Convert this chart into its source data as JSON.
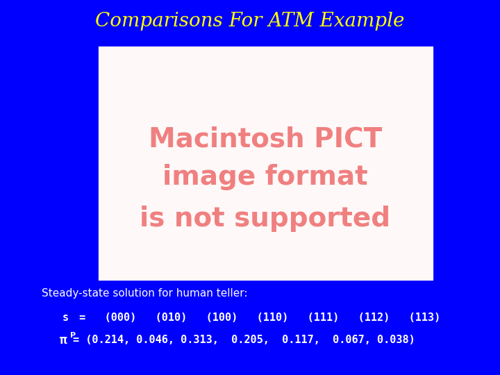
{
  "title": "Comparisons For ATM Example",
  "title_color": "#FFFF00",
  "title_fontsize": 20,
  "bg_color": "#0000FF",
  "image_placeholder_text": [
    "Macintosh PICT",
    "image format",
    "is not supported"
  ],
  "image_placeholder_text_color": "#F08080",
  "image_placeholder_bg": "#FFF8F8",
  "steady_state_label": "Steady-state solution for human teller:",
  "steady_state_color": "#FFFFFF",
  "steady_state_fontsize": 11,
  "s_label": "s",
  "s_values": " =   (000)   (010)   (100)   (110)   (111)   (112)   (113)",
  "pi_label": "π",
  "pi_superscript": "P",
  "pi_values": "= (0.214, 0.046, 0.313,  0.205,  0.117,  0.067, 0.038)",
  "mono_fontsize": 11,
  "mono_color": "#FFFFFF",
  "pict_fontsize": 28
}
